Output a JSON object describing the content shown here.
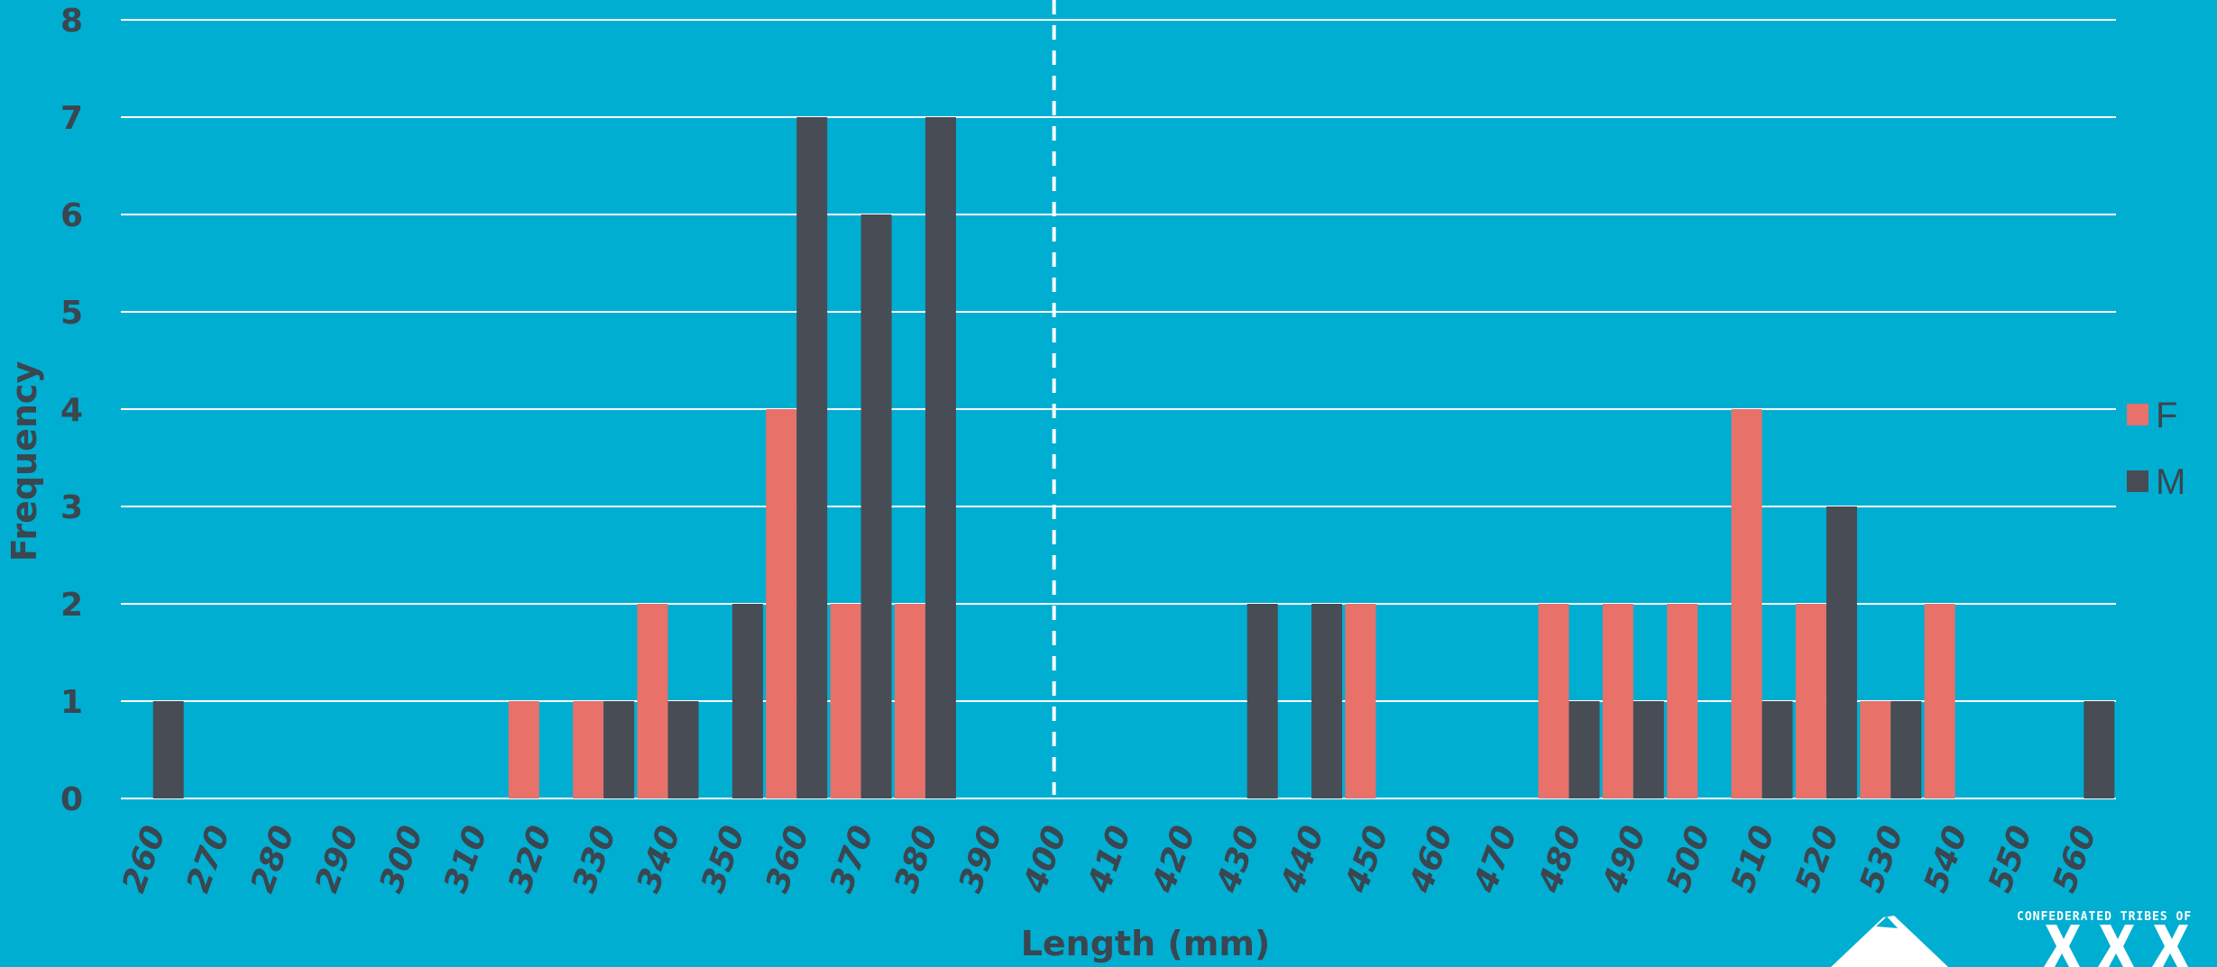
{
  "chart_data": {
    "type": "bar",
    "xlabel": "Length (mm)",
    "ylabel": "Frequency",
    "ylim": [
      0,
      8
    ],
    "yticks": [
      "0",
      "1",
      "2",
      "3",
      "4",
      "5",
      "6",
      "7",
      "8"
    ],
    "categories": [
      "260",
      "270",
      "280",
      "290",
      "300",
      "310",
      "320",
      "330",
      "340",
      "350",
      "360",
      "370",
      "380",
      "390",
      "400",
      "410",
      "420",
      "430",
      "440",
      "450",
      "460",
      "470",
      "480",
      "490",
      "500",
      "510",
      "520",
      "530",
      "540",
      "550",
      "560"
    ],
    "series": [
      {
        "name": "F",
        "color": "#e8716a",
        "values": [
          0,
          0,
          0,
          0,
          0,
          0,
          1,
          1,
          2,
          0,
          4,
          2,
          2,
          0,
          0,
          0,
          0,
          0,
          0,
          2,
          0,
          0,
          2,
          2,
          2,
          4,
          2,
          1,
          2,
          0,
          0
        ]
      },
      {
        "name": "M",
        "color": "#474c55",
        "values": [
          1,
          0,
          0,
          0,
          0,
          0,
          0,
          1,
          1,
          2,
          7,
          6,
          7,
          0,
          0,
          0,
          0,
          2,
          2,
          0,
          0,
          0,
          1,
          1,
          0,
          1,
          3,
          1,
          0,
          0,
          1
        ]
      }
    ],
    "reference_line": {
      "x": "400",
      "style": "dashed"
    },
    "grid": true,
    "legend": "right"
  },
  "logo": {
    "text": "CONFEDERATED TRIBES OF"
  }
}
